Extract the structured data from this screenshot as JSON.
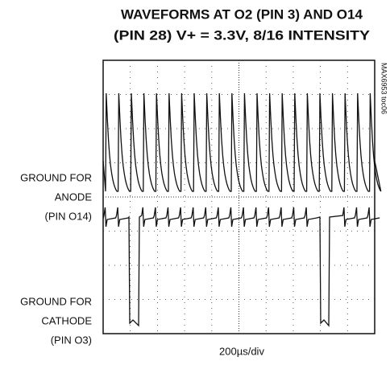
{
  "title": {
    "line1": "WAVEFORMS AT O2 (PIN 3) AND O14",
    "line2": "(PIN 28) V+ = 3.3V, 8/16 INTENSITY"
  },
  "side_code": "MAX6953 toc06",
  "anode_label": [
    "GROUND FOR",
    "ANODE",
    "(PIN O14)"
  ],
  "cathode_label": [
    "GROUND FOR",
    "CATHODE",
    "(PIN O3)"
  ],
  "timebase": "200µs/div"
}
